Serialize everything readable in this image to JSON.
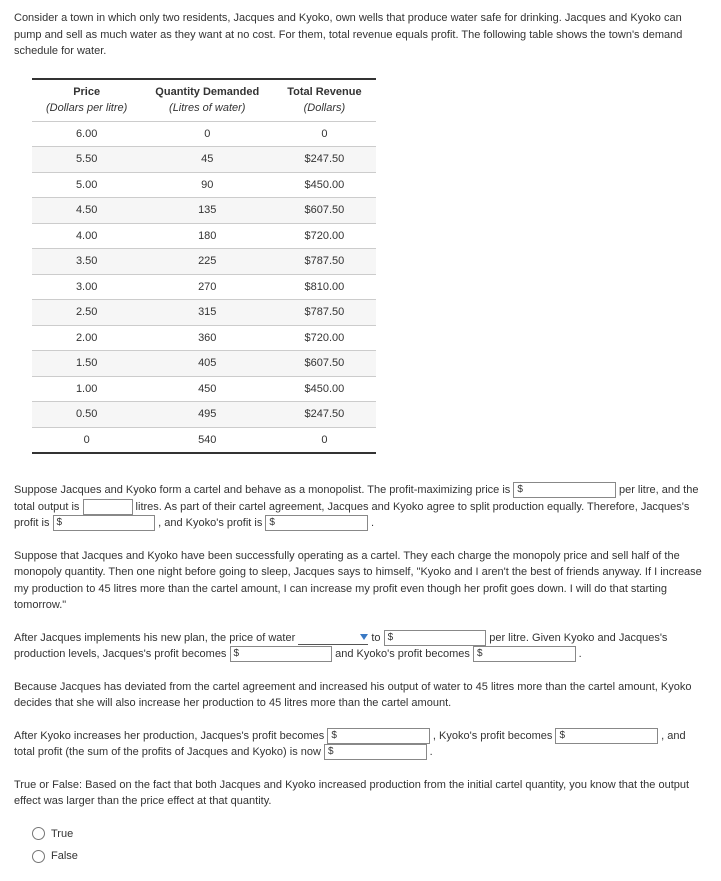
{
  "intro": "Consider a town in which only two residents, Jacques and Kyoko, own wells that produce water safe for drinking. Jacques and Kyoko can pump and sell as much water as they want at no cost. For them, total revenue equals profit. The following table shows the town's demand schedule for water.",
  "table": {
    "headers": {
      "price": "Price",
      "price_sub": "(Dollars per litre)",
      "qty": "Quantity Demanded",
      "qty_sub": "(Litres of water)",
      "rev": "Total Revenue",
      "rev_sub": "(Dollars)"
    },
    "rows": [
      {
        "p": "6.00",
        "q": "0",
        "r": "0"
      },
      {
        "p": "5.50",
        "q": "45",
        "r": "$247.50"
      },
      {
        "p": "5.00",
        "q": "90",
        "r": "$450.00"
      },
      {
        "p": "4.50",
        "q": "135",
        "r": "$607.50"
      },
      {
        "p": "4.00",
        "q": "180",
        "r": "$720.00"
      },
      {
        "p": "3.50",
        "q": "225",
        "r": "$787.50"
      },
      {
        "p": "3.00",
        "q": "270",
        "r": "$810.00"
      },
      {
        "p": "2.50",
        "q": "315",
        "r": "$787.50"
      },
      {
        "p": "2.00",
        "q": "360",
        "r": "$720.00"
      },
      {
        "p": "1.50",
        "q": "405",
        "r": "$607.50"
      },
      {
        "p": "1.00",
        "q": "450",
        "r": "$450.00"
      },
      {
        "p": "0.50",
        "q": "495",
        "r": "$247.50"
      },
      {
        "p": "0",
        "q": "540",
        "r": "0"
      }
    ]
  },
  "p1": {
    "a": "Suppose Jacques and Kyoko form a cartel and behave as a monopolist. The profit-maximizing price is ",
    "b": " per litre, and the total output is ",
    "c": " litres. As part of their cartel agreement, Jacques and Kyoko agree to split production equally. Therefore, Jacques's profit is ",
    "d": " , and Kyoko's profit is ",
    "e": " ."
  },
  "p2": "Suppose that Jacques and Kyoko have been successfully operating as a cartel. They each charge the monopoly price and sell half of the monopoly quantity. Then one night before going to sleep, Jacques says to himself, \"Kyoko and I aren't the best of friends anyway. If I increase my production to 45 litres more than the cartel amount, I can increase my profit even though her profit goes down. I will do that starting tomorrow.\"",
  "p3": {
    "a": "After Jacques implements his new plan, the price of water ",
    "b": " to ",
    "c": " per litre. Given Kyoko and Jacques's production levels, Jacques's profit becomes ",
    "d": " and Kyoko's profit becomes ",
    "e": " ."
  },
  "p4": "Because Jacques has deviated from the cartel agreement and increased his output of water to 45 litres more than the cartel amount, Kyoko decides that she will also increase her production to 45 litres more than the cartel amount.",
  "p5": {
    "a": "After Kyoko increases her production, Jacques's profit becomes ",
    "b": " , Kyoko's profit becomes ",
    "c": " , and total profit (the sum of the profits of Jacques and Kyoko) is now ",
    "d": " ."
  },
  "p6": "True or False: Based on the fact that both Jacques and Kyoko increased production from the initial cartel quantity, you know that the output effect was larger than the price effect at that quantity.",
  "radio": {
    "true": "True",
    "false": "False"
  },
  "prefix": "$"
}
